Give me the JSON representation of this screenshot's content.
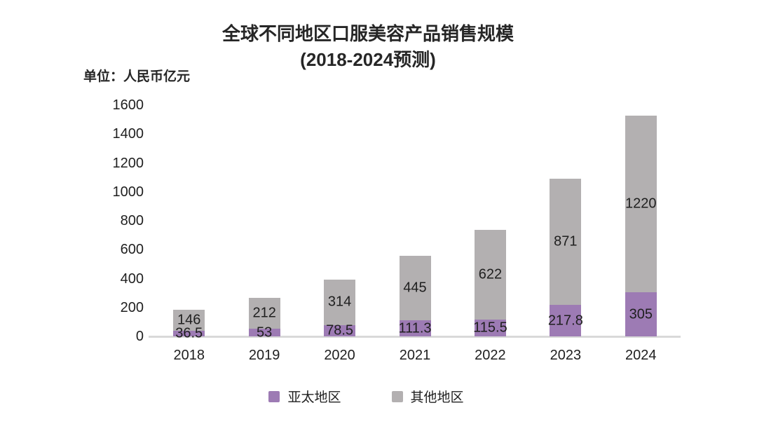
{
  "chart_data": {
    "type": "bar",
    "stacked": true,
    "title": "全球不同地区口服美容产品销售规模",
    "subtitle": "(2018-2024预测)",
    "unit_label": "单位：人民币亿元",
    "categories": [
      "2018",
      "2019",
      "2020",
      "2021",
      "2022",
      "2023",
      "2024"
    ],
    "series": [
      {
        "name": "亚太地区",
        "color": "#9d7bb4",
        "values": [
          36.5,
          53,
          78.5,
          111.3,
          115.5,
          217.8,
          305
        ]
      },
      {
        "name": "其他地区",
        "color": "#b3b0b1",
        "values": [
          146,
          212,
          314,
          445,
          622,
          871,
          1220
        ]
      }
    ],
    "y_ticks": [
      0,
      200,
      400,
      600,
      800,
      1000,
      1200,
      1400,
      1600
    ],
    "ylim": [
      0,
      1600
    ],
    "grid": false,
    "legend_position": "bottom",
    "axis_line_color": "#d9d9d9",
    "text_color": "#1f1f1f"
  }
}
